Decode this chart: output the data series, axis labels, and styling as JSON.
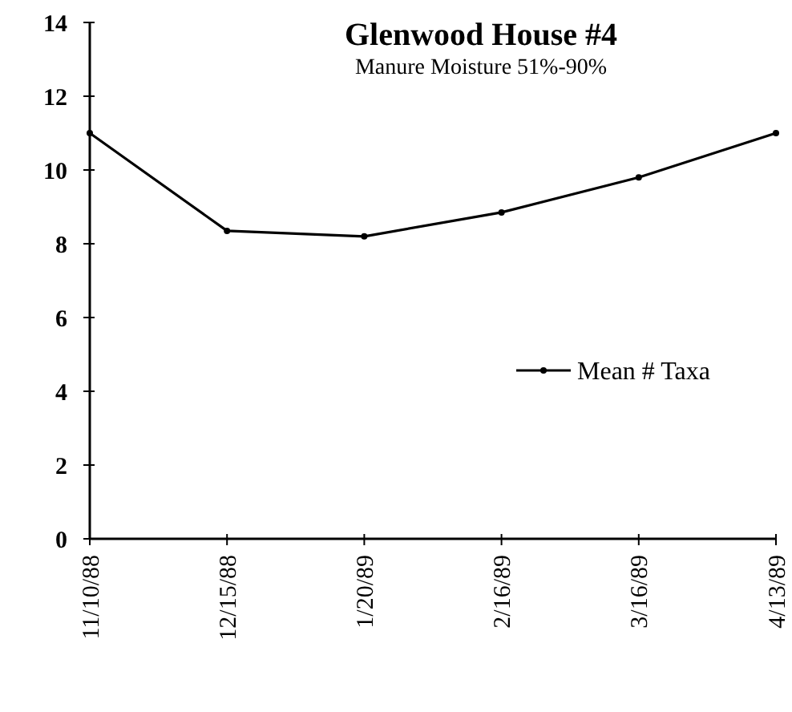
{
  "chart_data": {
    "type": "line",
    "title": "Glenwood  House #4",
    "subtitle": "Manure Moisture 51%-90%",
    "categories": [
      "11/10/88",
      "12/15/88",
      "1/20/89",
      "2/16/89",
      "3/16/89",
      "4/13/89"
    ],
    "series": [
      {
        "name": "Mean # Taxa",
        "color": "#000000",
        "values": [
          11.0,
          8.35,
          8.2,
          8.85,
          9.8,
          11.0
        ]
      }
    ],
    "ylim": [
      0,
      14
    ],
    "yticks": [
      0,
      2,
      4,
      6,
      8,
      10,
      12,
      14
    ],
    "grid": false,
    "legend": "right",
    "marker": "circle",
    "line_style": "solid"
  }
}
